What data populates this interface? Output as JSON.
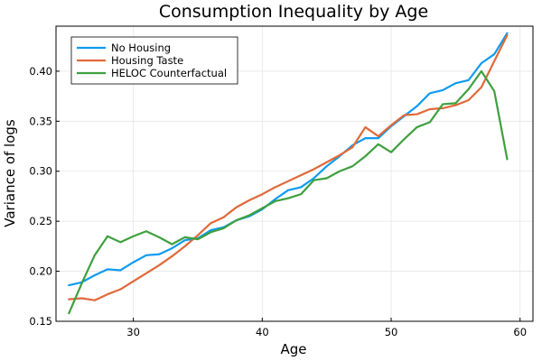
{
  "chart_data": {
    "type": "line",
    "title": "Consumption Inequality by Age",
    "xlabel": "Age",
    "ylabel": "Variance of logs",
    "xlim": [
      24,
      61
    ],
    "ylim": [
      0.15,
      0.445
    ],
    "xticks": [
      30,
      40,
      50,
      60
    ],
    "yticks": [
      0.15,
      0.2,
      0.25,
      0.3,
      0.35,
      0.4
    ],
    "ytick_labels": [
      "0.15",
      "0.20",
      "0.25",
      "0.30",
      "0.35",
      "0.40"
    ],
    "grid": true,
    "legend_position": "top-left",
    "x": [
      25,
      26,
      27,
      28,
      29,
      30,
      31,
      32,
      33,
      34,
      35,
      36,
      37,
      38,
      39,
      40,
      41,
      42,
      43,
      44,
      45,
      46,
      47,
      48,
      49,
      50,
      51,
      52,
      53,
      54,
      55,
      56,
      57,
      58,
      59
    ],
    "series": [
      {
        "name": "No Housing",
        "color": "#0f9bf0",
        "values": [
          0.186,
          0.189,
          0.196,
          0.202,
          0.201,
          0.209,
          0.216,
          0.217,
          0.223,
          0.231,
          0.233,
          0.241,
          0.244,
          0.251,
          0.255,
          0.262,
          0.272,
          0.281,
          0.284,
          0.293,
          0.305,
          0.315,
          0.326,
          0.333,
          0.333,
          0.345,
          0.355,
          0.365,
          0.378,
          0.381,
          0.388,
          0.391,
          0.408,
          0.417,
          0.438
        ]
      },
      {
        "name": "Housing Taste",
        "color": "#e0693a",
        "values": [
          0.172,
          0.173,
          0.171,
          0.177,
          0.182,
          0.19,
          0.198,
          0.206,
          0.215,
          0.225,
          0.236,
          0.248,
          0.254,
          0.264,
          0.271,
          0.277,
          0.284,
          0.29,
          0.296,
          0.302,
          0.309,
          0.316,
          0.324,
          0.344,
          0.335,
          0.346,
          0.356,
          0.357,
          0.362,
          0.363,
          0.366,
          0.371,
          0.384,
          0.41,
          0.436
        ]
      },
      {
        "name": "HELOC Counterfactual",
        "color": "#3ea03e",
        "values": [
          0.158,
          0.188,
          0.216,
          0.235,
          0.229,
          0.235,
          0.24,
          0.234,
          0.227,
          0.234,
          0.232,
          0.239,
          0.243,
          0.251,
          0.256,
          0.263,
          0.27,
          0.273,
          0.277,
          0.291,
          0.293,
          0.3,
          0.305,
          0.315,
          0.327,
          0.319,
          0.332,
          0.344,
          0.349,
          0.367,
          0.368,
          0.382,
          0.4,
          0.38,
          0.312
        ]
      }
    ]
  }
}
